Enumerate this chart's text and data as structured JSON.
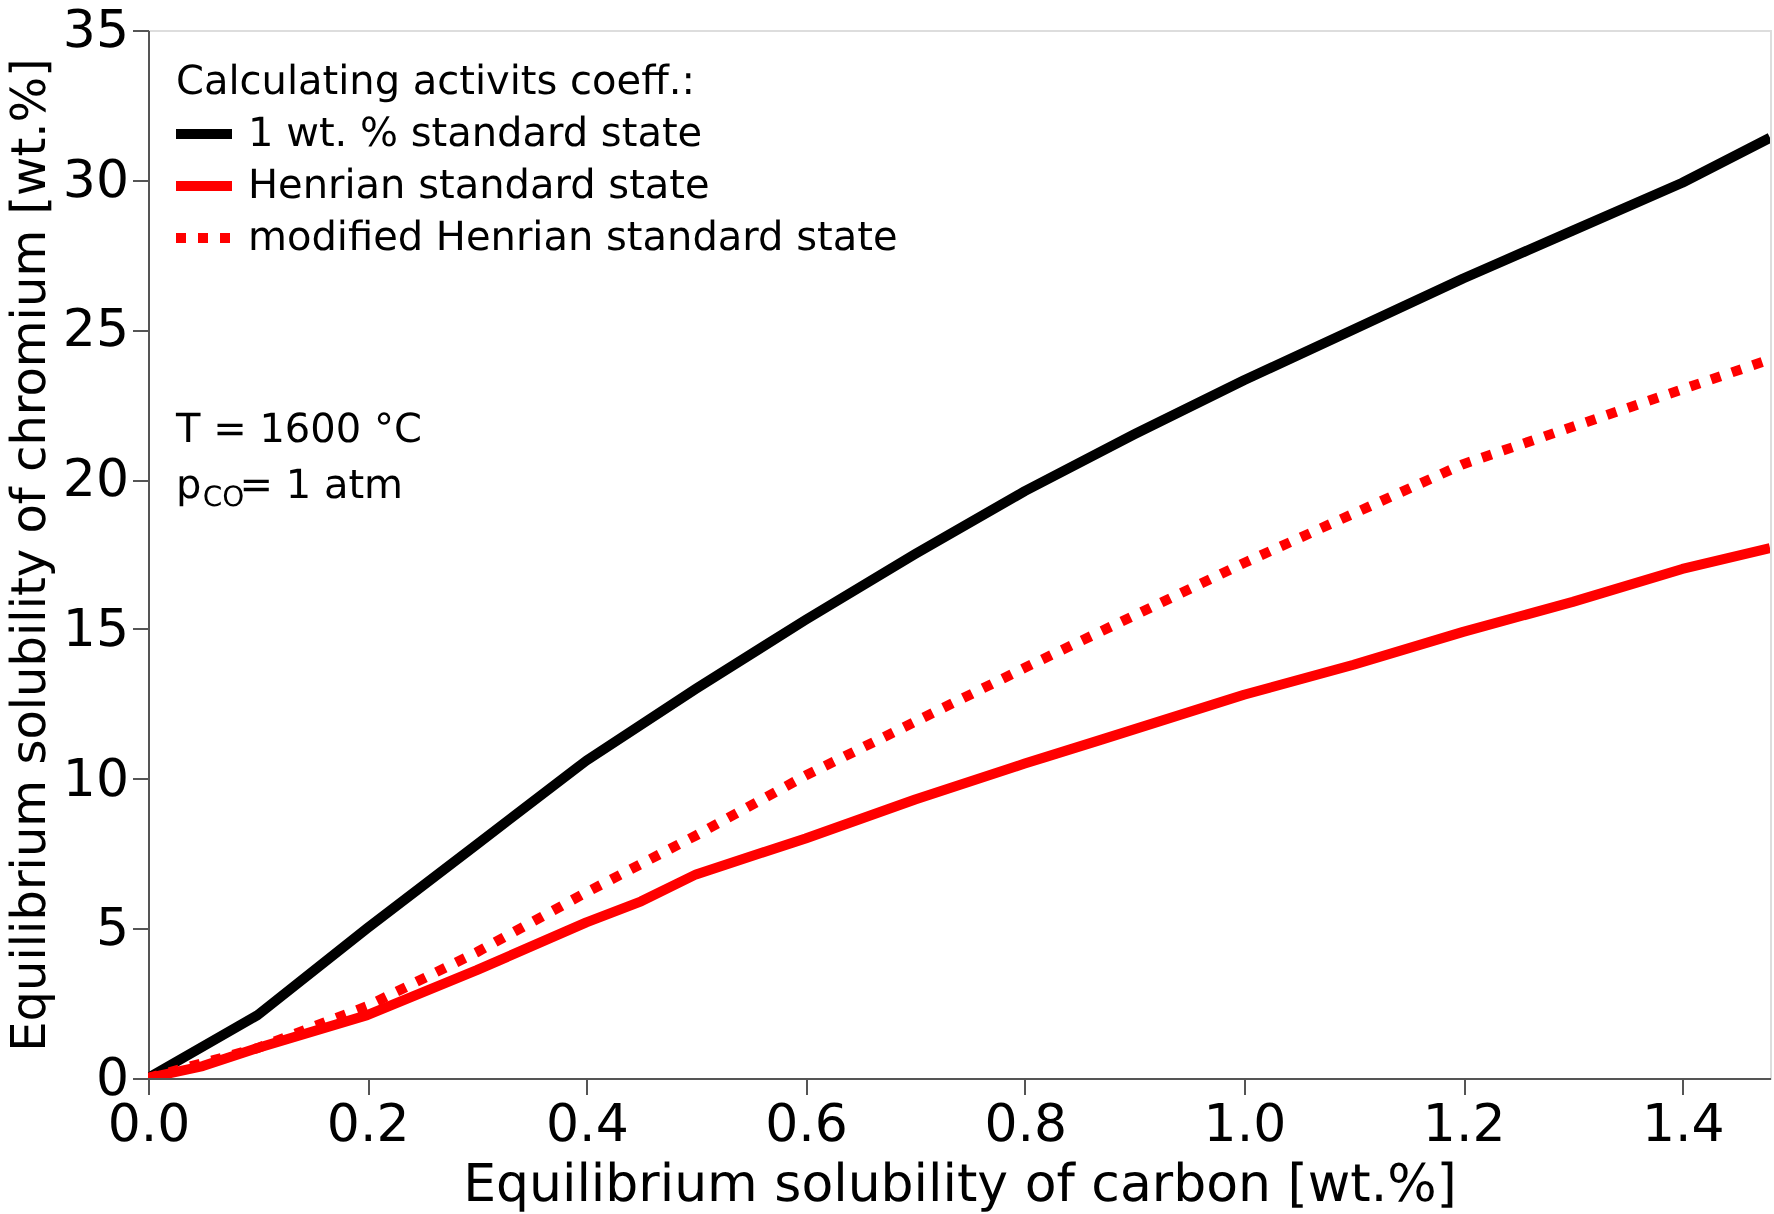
{
  "chart_data": {
    "type": "line",
    "xlabel": "Equilibrium solubility of carbon [wt.%]",
    "ylabel": "Equilibrium solubility of chromium [wt.%]",
    "legend_title": "Calculating activits coeff.:",
    "xlim": [
      0,
      1.48
    ],
    "xticks": [
      {
        "value": 0,
        "label": "0.0"
      },
      0.2,
      0.4,
      0.6,
      0.8,
      {
        "value": 1,
        "label": "1.0"
      },
      1.2,
      1.4
    ],
    "ylim": [
      0,
      35
    ],
    "yticks": [
      0,
      5,
      10,
      15,
      20,
      25,
      30,
      35
    ],
    "grid": false,
    "legend": "top left",
    "annotations": [
      "T = 1600 °C",
      "p$_{CO}$= 1 atm"
    ],
    "series": [
      {
        "name": "1 wt. % standard state",
        "color": "#000000",
        "line_style": "solid",
        "x": [
          0,
          0.1,
          0.2,
          0.3,
          0.4,
          0.5,
          0.6,
          0.7,
          0.8,
          0.9,
          1.0,
          1.1,
          1.2,
          1.3,
          1.4,
          1.48
        ],
        "values": [
          0,
          2.1,
          5,
          7.8,
          10.6,
          13,
          15.3,
          17.5,
          19.6,
          21.5,
          23.3,
          25,
          26.7,
          28.3,
          29.9,
          31.4
        ]
      },
      {
        "name": "Henrian standard state",
        "color": "#ff0000",
        "line_style": "solid",
        "x": [
          0,
          0.05,
          0.1,
          0.2,
          0.3,
          0.4,
          0.45,
          0.5,
          0.6,
          0.7,
          0.8,
          0.87,
          1.0,
          1.1,
          1.2,
          1.3,
          1.4,
          1.48
        ],
        "values": [
          0,
          0.4,
          1,
          2.1,
          3.6,
          5.2,
          5.9,
          6.8,
          8,
          9.3,
          10.5,
          11.3,
          12.8,
          13.8,
          14.9,
          15.9,
          17,
          17.7
        ]
      },
      {
        "name": "modified Henrian standard state",
        "color": "#ff0000",
        "line_style": "dotted",
        "x": [
          0,
          0.1,
          0.2,
          0.3,
          0.4,
          0.5,
          0.6,
          0.8,
          1.0,
          1.2,
          1.48
        ],
        "values": [
          0,
          1,
          2.4,
          4.2,
          6.2,
          8.1,
          10.1,
          13.7,
          17.2,
          20.5,
          24.0
        ]
      }
    ]
  }
}
